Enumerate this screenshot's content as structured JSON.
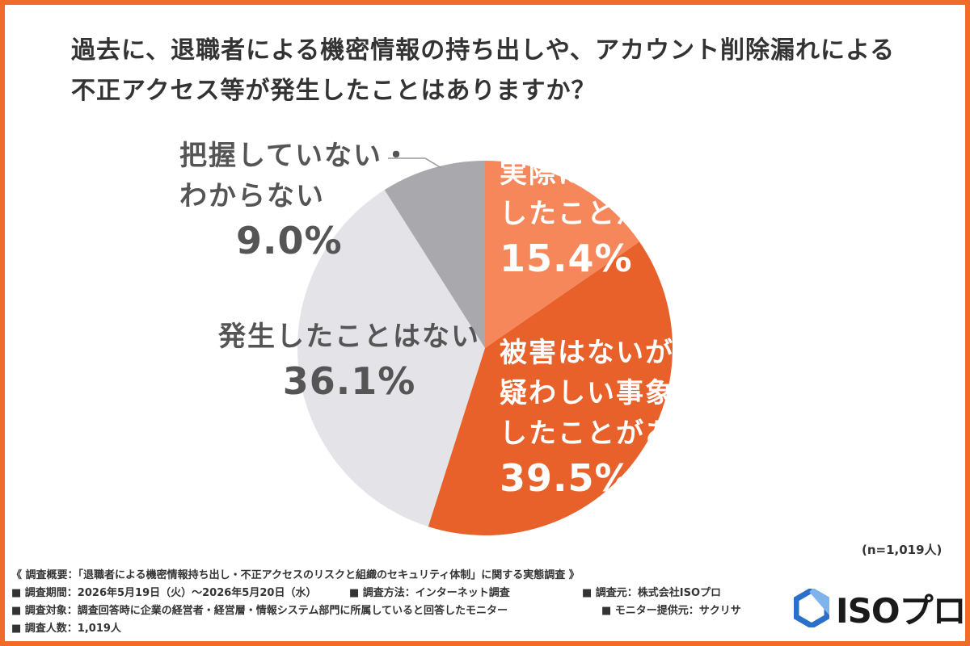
{
  "title": {
    "line1": "過去に、退職者による機密情報の持ち出しや、アカウント削除漏れによる",
    "line2": "不正アクセス等が発生したことはありますか？"
  },
  "chart_data": {
    "type": "pie",
    "slices": [
      {
        "label_lines": [
          "実際に被害が発生",
          "したことがある"
        ],
        "value": 15.4,
        "value_text": "15.4%",
        "color": "#f5875a",
        "text_color": "#ffffff"
      },
      {
        "label_lines": [
          "被害はないが、未遂や",
          "疑わしい事象が発生",
          "したことがある"
        ],
        "value": 39.5,
        "value_text": "39.5%",
        "color": "#e8612b",
        "text_color": "#ffffff"
      },
      {
        "label_lines": [
          "発生したことはない"
        ],
        "value": 36.1,
        "value_text": "36.1%",
        "color": "#e4e4e8",
        "text_color": "#555555"
      },
      {
        "label_lines": [
          "把握していない・",
          "わからない"
        ],
        "value": 9.0,
        "value_text": "9.0%",
        "color": "#a9a9ad",
        "text_color": "#555555"
      }
    ],
    "start": "12 o'clock",
    "direction": "clockwise"
  },
  "sample_note": "(n=1,019人)",
  "footer": {
    "summary": "《 調査概要：「退職者による機密情報持ち出し・不正アクセスのリスクと組織のセキュリティ体制」に関する実態調査 》",
    "period": "■ 調査期間：2026年5月19日（火）〜2026年5月20日（水）",
    "method": "■ 調査方法：インターネット調査",
    "source": "■ 調査元：株式会社ISOプロ",
    "target": "■ 調査対象：調査回答時に企業の経営者・経営層・情報システム部門に所属していると回答したモニター",
    "monitor": "■ モニター提供元：サクリサ",
    "count": "■ 調査人数：1,019人"
  },
  "logo": {
    "text": "ISOプロ",
    "icon": "hexagon-logo-icon",
    "color": "#2a6fc9"
  }
}
